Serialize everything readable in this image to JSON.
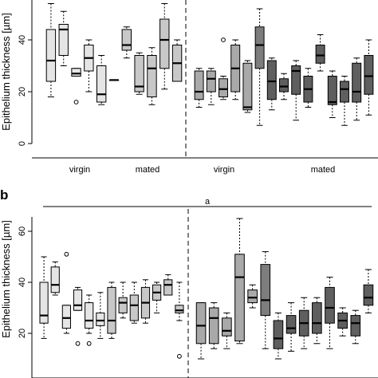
{
  "chart_data": [
    {
      "type": "boxplot",
      "panel_label": "",
      "ylabel": "Epithelium thickness [µm]",
      "ylim": [
        0,
        60
      ],
      "y_ticks": [
        0,
        20,
        40
      ],
      "group_labels": [
        "virgin",
        "mated",
        "virgin",
        "mated"
      ],
      "divider_after_box": 14,
      "boxes": [
        {
          "fill": "#e5e5e5",
          "min": 18,
          "q1": 24,
          "median": 32,
          "q3": 44,
          "max": 54,
          "outliers": []
        },
        {
          "fill": "#e5e5e5",
          "min": 30,
          "q1": 34,
          "median": 44,
          "q3": 46,
          "max": 51,
          "outliers": []
        },
        {
          "fill": "#e5e5e5",
          "min": 26,
          "q1": 26,
          "median": 27,
          "q3": 29,
          "max": 29,
          "outliers": [
            16
          ]
        },
        {
          "fill": "#e5e5e5",
          "min": 20,
          "q1": 28,
          "median": 33,
          "q3": 38,
          "max": 40,
          "outliers": []
        },
        {
          "fill": "#e5e5e5",
          "min": 15,
          "q1": 16,
          "median": 19,
          "q3": 30,
          "max": 34,
          "outliers": []
        },
        {
          "fill": "#e5e5e5",
          "min": 24.5,
          "q1": 24.5,
          "median": 24.5,
          "q3": 24.5,
          "max": 24.5,
          "outliers": []
        },
        {
          "fill": "#c8c8c8",
          "min": 33,
          "q1": 36,
          "median": 38,
          "q3": 44,
          "max": 45,
          "outliers": []
        },
        {
          "fill": "#c8c8c8",
          "min": 19,
          "q1": 20,
          "median": 22,
          "q3": 34,
          "max": 35,
          "outliers": []
        },
        {
          "fill": "#c8c8c8",
          "min": 15,
          "q1": 18,
          "median": 29,
          "q3": 34,
          "max": 37,
          "outliers": []
        },
        {
          "fill": "#c8c8c8",
          "min": 21,
          "q1": 29,
          "median": 40,
          "q3": 48,
          "max": 54,
          "outliers": []
        },
        {
          "fill": "#c8c8c8",
          "min": 24,
          "q1": 24,
          "median": 31,
          "q3": 38,
          "max": 40,
          "outliers": []
        },
        {
          "fill": "#a9a9a9",
          "min": 14,
          "q1": 17,
          "median": 20,
          "q3": 28,
          "max": 29,
          "outliers": []
        },
        {
          "fill": "#a9a9a9",
          "min": 15,
          "q1": 20,
          "median": 25,
          "q3": 28,
          "max": 29,
          "outliers": []
        },
        {
          "fill": "#a9a9a9",
          "min": 17,
          "q1": 18,
          "median": 21,
          "q3": 25,
          "max": 26,
          "outliers": [
            40
          ]
        },
        {
          "fill": "#a9a9a9",
          "min": 17,
          "q1": 20,
          "median": 29,
          "q3": 38,
          "max": 40,
          "outliers": []
        },
        {
          "fill": "#a9a9a9",
          "min": 12,
          "q1": 13,
          "median": 14,
          "q3": 31,
          "max": 32,
          "outliers": []
        },
        {
          "fill": "#7d7d7d",
          "min": 7,
          "q1": 29,
          "median": 38,
          "q3": 45,
          "max": 52,
          "outliers": []
        },
        {
          "fill": "#5f5f5f",
          "min": 13,
          "q1": 17,
          "median": 24,
          "q3": 32,
          "max": 33,
          "outliers": []
        },
        {
          "fill": "#5f5f5f",
          "min": 17,
          "q1": 20,
          "median": 22,
          "q3": 25,
          "max": 27,
          "outliers": []
        },
        {
          "fill": "#5f5f5f",
          "min": 9,
          "q1": 19,
          "median": 28,
          "q3": 30,
          "max": 32,
          "outliers": []
        },
        {
          "fill": "#5f5f5f",
          "min": 14,
          "q1": 16,
          "median": 21,
          "q3": 26,
          "max": 29,
          "outliers": []
        },
        {
          "fill": "#5f5f5f",
          "min": 28,
          "q1": 31,
          "median": 34,
          "q3": 38,
          "max": 42,
          "outliers": []
        },
        {
          "fill": "#5f5f5f",
          "min": 10,
          "q1": 15,
          "median": 16,
          "q3": 26,
          "max": 28,
          "outliers": []
        },
        {
          "fill": "#5f5f5f",
          "min": 7,
          "q1": 16,
          "median": 21,
          "q3": 24,
          "max": 26,
          "outliers": []
        },
        {
          "fill": "#5f5f5f",
          "min": 9,
          "q1": 16,
          "median": 20,
          "q3": 31,
          "max": 33,
          "outliers": []
        },
        {
          "fill": "#5f5f5f",
          "min": 11,
          "q1": 19,
          "median": 26,
          "q3": 34,
          "max": 40,
          "outliers": []
        }
      ]
    },
    {
      "type": "boxplot",
      "panel_label": "b",
      "ylabel": "Epithelium thickness [µm]",
      "ylim": [
        10,
        70
      ],
      "y_ticks": [
        20,
        40,
        60
      ],
      "significance_label": "a",
      "divider_after_box": 14,
      "boxes": [
        {
          "fill": "#e5e5e5",
          "min": 18,
          "q1": 24,
          "median": 27,
          "q3": 40,
          "max": 50,
          "outliers": []
        },
        {
          "fill": "#e5e5e5",
          "min": 35,
          "q1": 36,
          "median": 39,
          "q3": 46,
          "max": 48,
          "outliers": []
        },
        {
          "fill": "#e5e5e5",
          "min": 20,
          "q1": 22,
          "median": 26,
          "q3": 31,
          "max": 31,
          "outliers": [
            51
          ]
        },
        {
          "fill": "#e5e5e5",
          "min": 29,
          "q1": 29,
          "median": 31,
          "q3": 37,
          "max": 38,
          "outliers": [
            16
          ]
        },
        {
          "fill": "#e5e5e5",
          "min": 20,
          "q1": 22,
          "median": 25,
          "q3": 32,
          "max": 35,
          "outliers": [
            16
          ]
        },
        {
          "fill": "#e5e5e5",
          "min": 18,
          "q1": 23,
          "median": 25,
          "q3": 28,
          "max": 36,
          "outliers": []
        },
        {
          "fill": "#c8c8c8",
          "min": 18,
          "q1": 20,
          "median": 25,
          "q3": 38,
          "max": 40,
          "outliers": []
        },
        {
          "fill": "#c8c8c8",
          "min": 26,
          "q1": 28,
          "median": 32,
          "q3": 34,
          "max": 40,
          "outliers": []
        },
        {
          "fill": "#c8c8c8",
          "min": 24,
          "q1": 25,
          "median": 31,
          "q3": 35,
          "max": 40,
          "outliers": []
        },
        {
          "fill": "#c8c8c8",
          "min": 24,
          "q1": 26,
          "median": 32,
          "q3": 38,
          "max": 41,
          "outliers": []
        },
        {
          "fill": "#c8c8c8",
          "min": 28,
          "q1": 33,
          "median": 36,
          "q3": 39,
          "max": 40,
          "outliers": []
        },
        {
          "fill": "#c8c8c8",
          "min": 35,
          "q1": 35,
          "median": 39,
          "q3": 41,
          "max": 43,
          "outliers": []
        },
        {
          "fill": "#c8c8c8",
          "min": 25,
          "q1": 28,
          "median": 29,
          "q3": 31,
          "max": 40,
          "outliers": [
            11
          ]
        },
        {
          "fill": "#a9a9a9",
          "min": 10,
          "q1": 16,
          "median": 23,
          "q3": 32,
          "max": 32,
          "outliers": []
        },
        {
          "fill": "#a9a9a9",
          "min": 14,
          "q1": 16,
          "median": 26,
          "q3": 30,
          "max": 32,
          "outliers": []
        },
        {
          "fill": "#a9a9a9",
          "min": 14,
          "q1": 19,
          "median": 21,
          "q3": 26,
          "max": 28,
          "outliers": []
        },
        {
          "fill": "#a9a9a9",
          "min": 16,
          "q1": 17,
          "median": 42,
          "q3": 51,
          "max": 65,
          "outliers": []
        },
        {
          "fill": "#a9a9a9",
          "min": 30,
          "q1": 32,
          "median": 34,
          "q3": 37,
          "max": 39,
          "outliers": []
        },
        {
          "fill": "#7d7d7d",
          "min": 14,
          "q1": 27,
          "median": 33,
          "q3": 47,
          "max": 52,
          "outliers": []
        },
        {
          "fill": "#5f5f5f",
          "min": 10,
          "q1": 14,
          "median": 18,
          "q3": 25,
          "max": 28,
          "outliers": []
        },
        {
          "fill": "#5f5f5f",
          "min": 13,
          "q1": 20,
          "median": 22,
          "q3": 27,
          "max": 32,
          "outliers": []
        },
        {
          "fill": "#5f5f5f",
          "min": 14,
          "q1": 19,
          "median": 24,
          "q3": 29,
          "max": 34,
          "outliers": []
        },
        {
          "fill": "#5f5f5f",
          "min": 16,
          "q1": 20,
          "median": 24,
          "q3": 32,
          "max": 34,
          "outliers": []
        },
        {
          "fill": "#5f5f5f",
          "min": 14,
          "q1": 24,
          "median": 30,
          "q3": 38,
          "max": 42,
          "outliers": []
        },
        {
          "fill": "#5f5f5f",
          "min": 19,
          "q1": 22,
          "median": 25,
          "q3": 28,
          "max": 30,
          "outliers": []
        },
        {
          "fill": "#5f5f5f",
          "min": 16,
          "q1": 19,
          "median": 24,
          "q3": 27,
          "max": 29,
          "outliers": []
        },
        {
          "fill": "#5f5f5f",
          "min": 28,
          "q1": 31,
          "median": 34,
          "q3": 39,
          "max": 45,
          "outliers": []
        }
      ]
    }
  ]
}
